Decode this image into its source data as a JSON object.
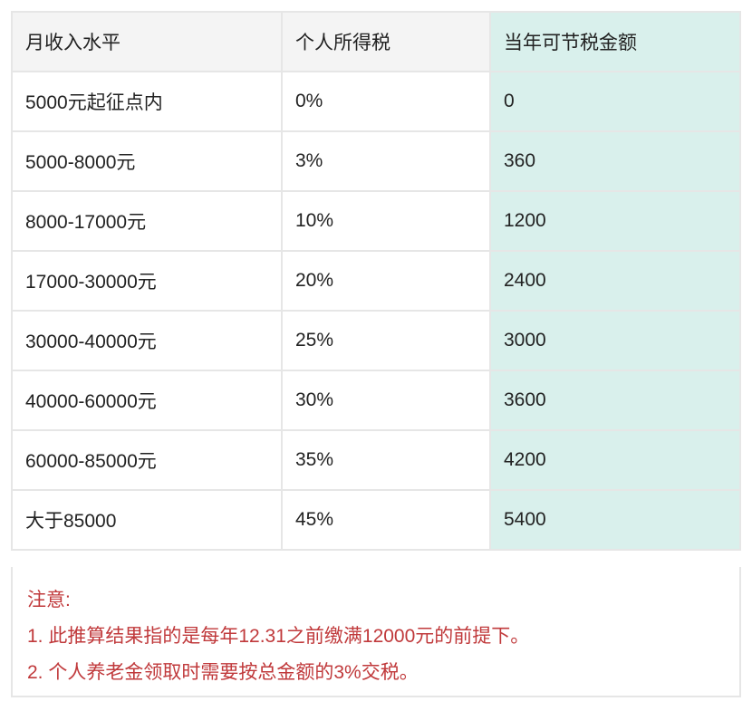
{
  "headers": [
    "月收入水平",
    "个人所得税",
    "当年可节税金额"
  ],
  "rows": [
    [
      "5000元起征点内",
      "0%",
      "0"
    ],
    [
      "5000-8000元",
      "3%",
      "360"
    ],
    [
      "8000-17000元",
      "10%",
      "1200"
    ],
    [
      "17000-30000元",
      "20%",
      "2400"
    ],
    [
      "30000-40000元",
      "25%",
      "3000"
    ],
    [
      "40000-60000元",
      "30%",
      "3600"
    ],
    [
      "60000-85000元",
      "35%",
      "4200"
    ],
    [
      "大于85000",
      "45%",
      "5400"
    ]
  ],
  "notes": {
    "title": "注意:",
    "line1": "1. 此推算结果指的是每年12.31之前缴满12000元的前提下。",
    "line2": "2. 个人养老金领取时需要按总金额的3%交税。"
  },
  "colors": {
    "highlight_column": "#d9f0ec",
    "header_bg": "#f4f4f4",
    "note_text": "#c0393b"
  }
}
